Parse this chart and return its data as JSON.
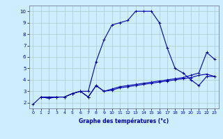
{
  "background_color": "#cceeff",
  "grid_color": "#aacccc",
  "line_color": "#0000aa",
  "title": "Graphe des températures (°c)",
  "xlim": [
    -0.5,
    23.5
  ],
  "ylim": [
    1.5,
    10.5
  ],
  "yticks": [
    2,
    3,
    4,
    5,
    6,
    7,
    8,
    9,
    10
  ],
  "xticks": [
    0,
    1,
    2,
    3,
    4,
    5,
    6,
    7,
    8,
    9,
    10,
    11,
    12,
    13,
    14,
    15,
    16,
    17,
    18,
    19,
    20,
    21,
    22,
    23
  ],
  "series": [
    {
      "x": [
        0,
        1,
        2,
        3,
        4,
        5,
        6,
        7,
        8,
        9,
        10,
        11,
        12,
        13,
        14,
        15,
        16,
        17,
        18,
        19,
        20,
        21,
        22,
        23
      ],
      "y": [
        1.85,
        2.5,
        2.5,
        2.5,
        2.5,
        2.8,
        3.0,
        3.0,
        5.6,
        7.5,
        8.8,
        9.0,
        9.2,
        10.0,
        10.0,
        10.0,
        9.0,
        6.8,
        5.0,
        4.6,
        4.0,
        3.5,
        4.3,
        4.3
      ]
    },
    {
      "x": [
        1,
        2,
        3,
        4,
        5,
        6,
        7,
        8,
        9,
        10,
        11,
        12,
        13,
        14,
        15,
        16,
        17,
        18,
        19,
        20,
        21,
        22,
        23
      ],
      "y": [
        2.5,
        2.4,
        2.5,
        2.5,
        2.8,
        3.0,
        2.5,
        3.5,
        3.0,
        3.2,
        3.4,
        3.5,
        3.6,
        3.7,
        3.8,
        3.9,
        4.0,
        4.1,
        4.2,
        4.4,
        4.6,
        6.4,
        5.8
      ]
    },
    {
      "x": [
        1,
        2,
        3,
        4,
        5,
        6,
        7,
        8,
        9,
        10,
        11,
        12,
        13,
        14,
        15,
        16,
        17,
        18,
        19,
        20,
        21,
        22,
        23
      ],
      "y": [
        2.5,
        2.4,
        2.5,
        2.5,
        2.8,
        3.0,
        2.5,
        3.5,
        3.0,
        3.1,
        3.3,
        3.4,
        3.5,
        3.6,
        3.7,
        3.8,
        3.9,
        4.0,
        4.1,
        4.2,
        4.4,
        4.5,
        4.3
      ]
    }
  ]
}
